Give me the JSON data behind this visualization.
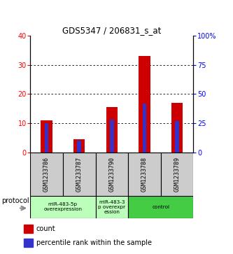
{
  "title": "GDS5347 / 206831_s_at",
  "samples": [
    "GSM1233786",
    "GSM1233787",
    "GSM1233790",
    "GSM1233788",
    "GSM1233789"
  ],
  "count_values": [
    11,
    4.5,
    15.5,
    33,
    17
  ],
  "percentile_pct": [
    25,
    10,
    28,
    42,
    27
  ],
  "ylim_left": [
    0,
    40
  ],
  "ylim_right": [
    0,
    100
  ],
  "yticks_left": [
    0,
    10,
    20,
    30,
    40
  ],
  "yticks_right": [
    0,
    25,
    50,
    75,
    100
  ],
  "yticklabels_right": [
    "0",
    "25",
    "50",
    "75",
    "100%"
  ],
  "bar_color_red": "#cc0000",
  "bar_color_blue": "#3333cc",
  "bg_color": "#ffffff",
  "sample_bg_color": "#cccccc",
  "legend_count_label": "count",
  "legend_pct_label": "percentile rank within the sample",
  "protocol_label": "protocol",
  "bar_width": 0.35,
  "blue_bar_width": 0.12,
  "group_info": [
    {
      "start": 0,
      "end": 1,
      "label": "miR-483-5p\noverexpression",
      "color": "#bbffbb"
    },
    {
      "start": 2,
      "end": 2,
      "label": "miR-483-3\np overexpr\nession",
      "color": "#bbffbb"
    },
    {
      "start": 3,
      "end": 4,
      "label": "control",
      "color": "#44cc44"
    }
  ]
}
